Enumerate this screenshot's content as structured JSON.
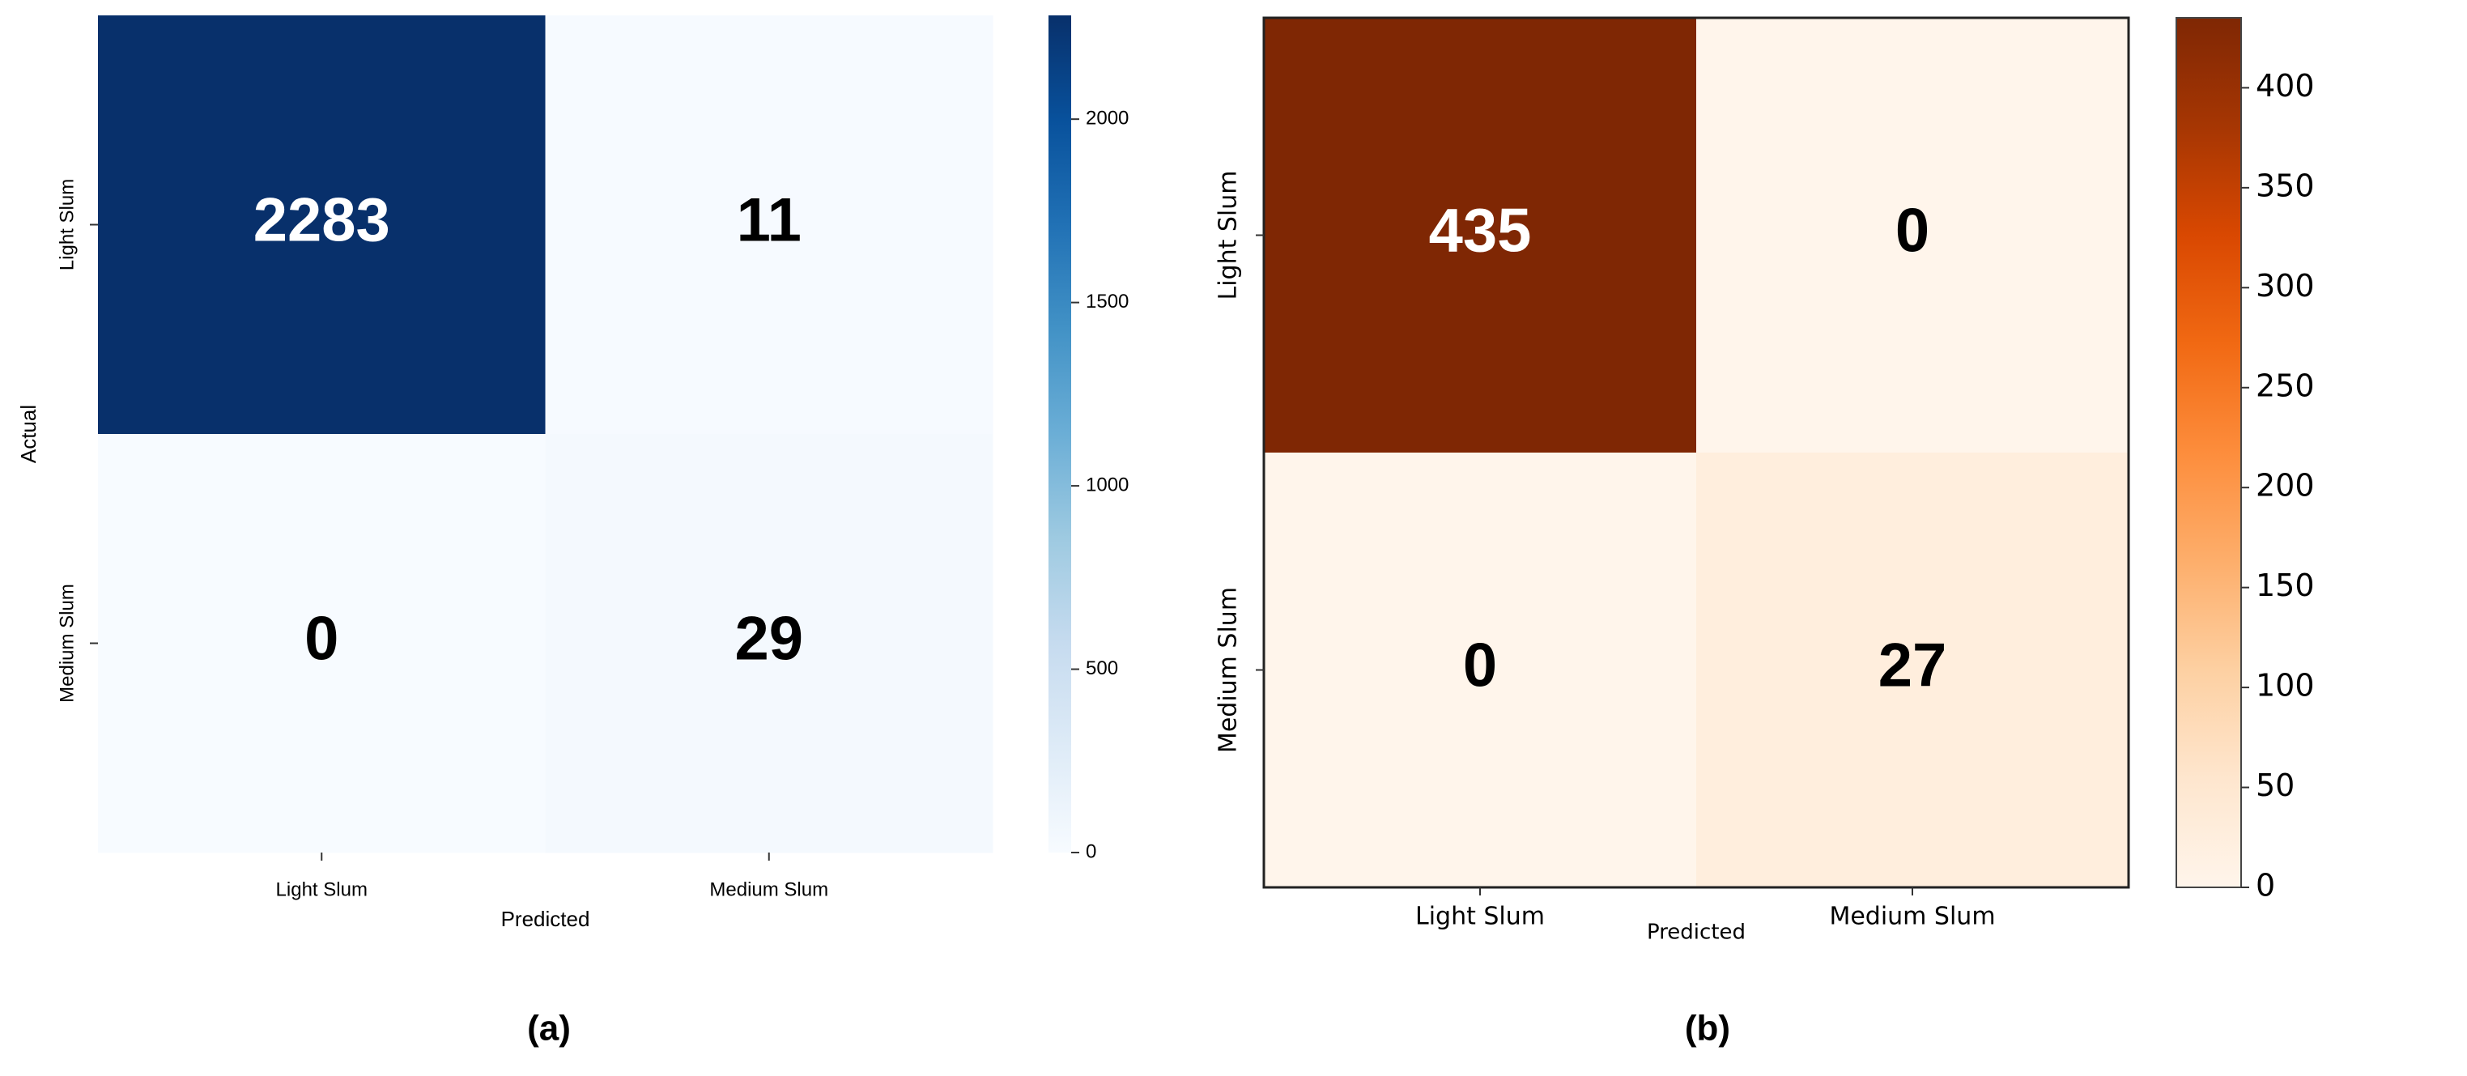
{
  "chart_data": [
    {
      "type": "heatmap",
      "panel_label": "(a)",
      "xlabel": "Predicted",
      "ylabel": "Actual",
      "x_categories": [
        "Light Slum",
        "Medium Slum"
      ],
      "y_categories": [
        "Light Slum",
        "Medium Slum"
      ],
      "values": [
        [
          2283,
          11
        ],
        [
          0,
          29
        ]
      ],
      "colormap": [
        "#f7fbff",
        "#deebf7",
        "#c6dbef",
        "#9ecae1",
        "#6baed6",
        "#4292c6",
        "#2171b5",
        "#08519c",
        "#08306b"
      ],
      "zlim": [
        0,
        2283
      ],
      "zticks": [
        0,
        500,
        1000,
        1500,
        2000
      ]
    },
    {
      "type": "heatmap",
      "panel_label": "(b)",
      "xlabel": "Predicted",
      "x_categories": [
        "Light Slum",
        "Medium Slum"
      ],
      "y_categories": [
        "Light Slum",
        "Medium Slum"
      ],
      "values": [
        [
          435,
          0
        ],
        [
          0,
          27
        ]
      ],
      "colormap": [
        "#fff5eb",
        "#fee6ce",
        "#fdd0a2",
        "#fdae6b",
        "#fd8d3c",
        "#f16913",
        "#d94801",
        "#a63603",
        "#7f2704"
      ],
      "zlim": [
        0,
        435
      ],
      "zticks": [
        0,
        50,
        100,
        150,
        200,
        250,
        300,
        350,
        400
      ]
    }
  ]
}
